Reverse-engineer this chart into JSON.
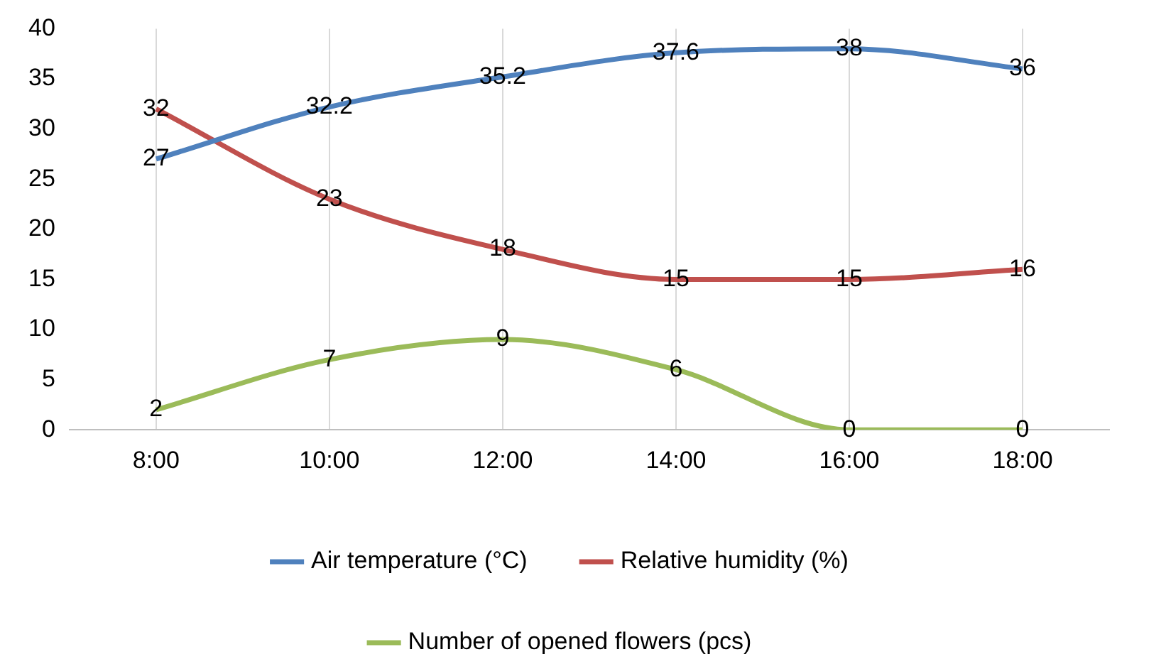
{
  "chart_data": {
    "type": "line",
    "categories": [
      "8:00",
      "10:00",
      "12:00",
      "14:00",
      "16:00",
      "18:00"
    ],
    "series": [
      {
        "name": "Air temperature (°C)",
        "color": "#4f81bd",
        "values": [
          27,
          32.2,
          35.2,
          37.6,
          38,
          36
        ]
      },
      {
        "name": "Relative humidity (%)",
        "color": "#c0504d",
        "values": [
          32,
          23,
          18,
          15,
          15,
          16
        ]
      },
      {
        "name": "Number of opened flowers (pcs)",
        "color": "#9bbb59",
        "values": [
          2,
          7,
          9,
          6,
          0,
          0
        ]
      }
    ],
    "ylim": [
      0,
      40
    ],
    "yticks": [
      0,
      5,
      10,
      15,
      20,
      25,
      30,
      35,
      40
    ],
    "grid": "x",
    "legend": "bottom",
    "data_labels": true,
    "marker": "none",
    "line_style": "solid"
  }
}
